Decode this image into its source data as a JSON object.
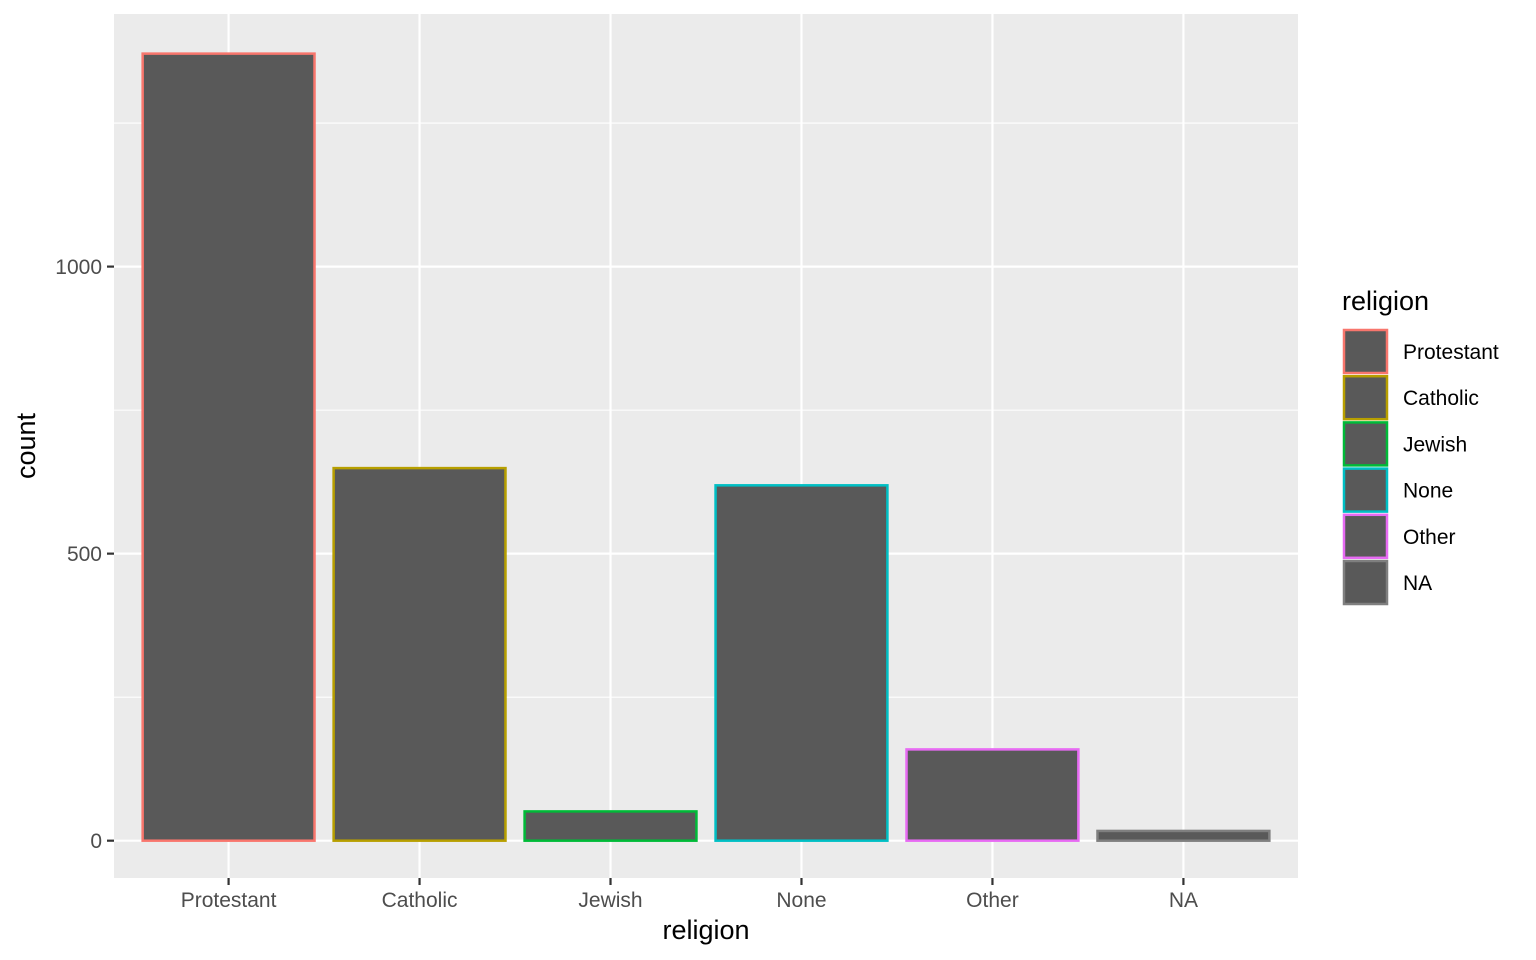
{
  "chart_data": {
    "type": "bar",
    "categories": [
      "Protestant",
      "Catholic",
      "Jewish",
      "None",
      "Other",
      "NA"
    ],
    "values": [
      1371,
      649,
      51,
      619,
      159,
      17
    ],
    "xlabel": "religion",
    "ylabel": "count",
    "ylim": [
      -65,
      1440
    ],
    "yticks": [
      0,
      500,
      1000
    ],
    "yticks_labels": [
      "0",
      "500",
      "1000"
    ],
    "grid": true,
    "legend": {
      "title": "religion",
      "position": "right",
      "entries": [
        "Protestant",
        "Catholic",
        "Jewish",
        "None",
        "Other",
        "NA"
      ]
    },
    "bar_fill": "#595959",
    "outline_colors": [
      "#F8766D",
      "#B79F00",
      "#00BA38",
      "#00BFC4",
      "#E76BF3",
      "#7F7F7F"
    ],
    "panel_background": "#EBEBEB",
    "grid_color": "#FFFFFF"
  }
}
